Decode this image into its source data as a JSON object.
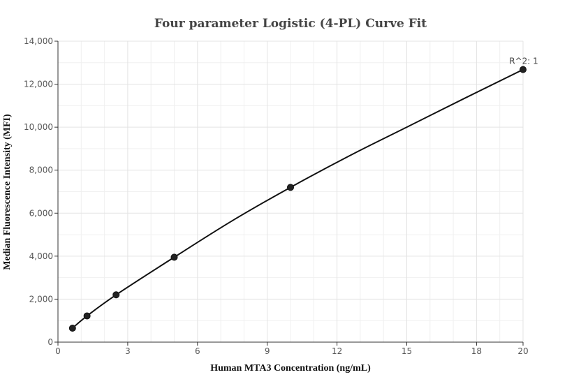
{
  "chart_data": {
    "type": "scatter",
    "title": "Four parameter Logistic (4-PL) Curve Fit",
    "xlabel": "Human MTA3 Concentration (ng/mL)",
    "ylabel": "Median Fluorescence Intensity (MFI)",
    "xlim": [
      0,
      20
    ],
    "ylim": [
      0,
      14000
    ],
    "x_ticks": [
      0,
      3,
      6,
      9,
      12,
      15,
      18,
      20
    ],
    "x_tick_labels": [
      "0",
      "3",
      "6",
      "9",
      "12",
      "15",
      "18",
      "20"
    ],
    "y_ticks": [
      0,
      2000,
      4000,
      6000,
      8000,
      10000,
      12000,
      14000
    ],
    "y_tick_labels": [
      "0",
      "2,000",
      "4,000",
      "6,000",
      "8,000",
      "10,000",
      "12,000",
      "14,000"
    ],
    "grid": true,
    "series": [
      {
        "type": "scatter",
        "x": [
          0.625,
          1.25,
          2.5,
          5,
          10,
          20
        ],
        "y": [
          650,
          1220,
          2200,
          3950,
          7200,
          12680
        ],
        "color": "#222222"
      },
      {
        "type": "line",
        "x": [
          0.625,
          1.25,
          2.5,
          5,
          7.5,
          10,
          12.5,
          15,
          17.5,
          20
        ],
        "y": [
          650,
          1220,
          2200,
          3950,
          5650,
          7200,
          8650,
          10000,
          11350,
          12680
        ],
        "color": "#111111"
      }
    ],
    "annotations": [
      {
        "text": "R^2: 1",
        "x": 20,
        "y": 12680
      }
    ]
  }
}
